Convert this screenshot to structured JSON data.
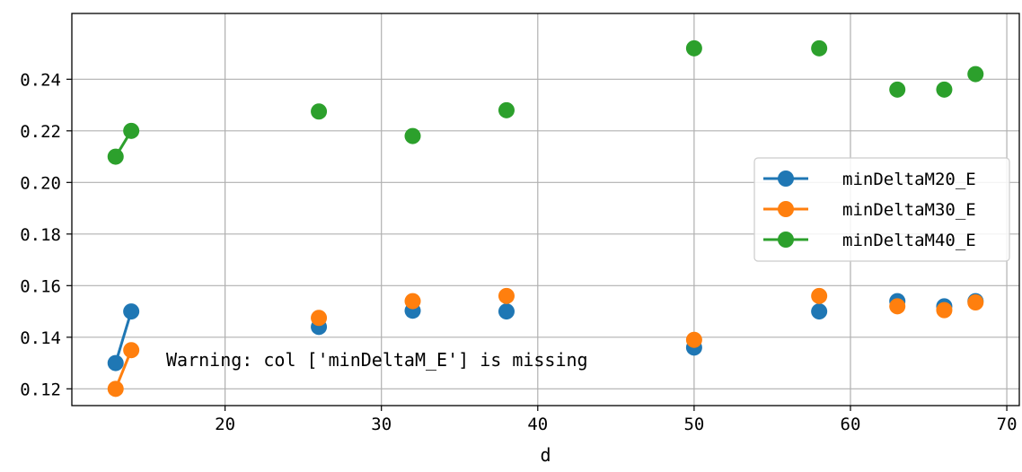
{
  "chart_data": {
    "type": "line",
    "xlabel": "d",
    "ylabel": "",
    "title": "",
    "xlim": [
      10.2,
      70.8
    ],
    "ylim": [
      0.1135,
      0.2655
    ],
    "xticks": [
      20,
      30,
      40,
      50,
      60,
      70
    ],
    "yticks": [
      0.12,
      0.14,
      0.16,
      0.18,
      0.2,
      0.22,
      0.24
    ],
    "ytick_labels": [
      "0.12",
      "0.14",
      "0.16",
      "0.18",
      "0.20",
      "0.22",
      "0.24"
    ],
    "grid": true,
    "legend_position": "center-right",
    "x": [
      13,
      14,
      26,
      32,
      38,
      50,
      58,
      63,
      66,
      68
    ],
    "series": [
      {
        "name": "minDeltaM20_E",
        "color": "#1f77b4",
        "values": [
          0.13,
          0.15,
          0.144,
          0.1503,
          0.15,
          0.136,
          0.15,
          0.154,
          0.152,
          0.154
        ]
      },
      {
        "name": "minDeltaM30_E",
        "color": "#ff7f0e",
        "values": [
          0.12,
          0.135,
          0.1475,
          0.154,
          0.156,
          0.139,
          0.156,
          0.152,
          0.1505,
          0.1535
        ]
      },
      {
        "name": "minDeltaM40_E",
        "color": "#2ca02c",
        "values": [
          0.21,
          0.22,
          0.2275,
          0.218,
          0.228,
          0.252,
          0.252,
          0.236,
          0.236,
          0.242
        ]
      }
    ],
    "annotation": "Warning: col ['minDeltaM_E'] is missing"
  }
}
